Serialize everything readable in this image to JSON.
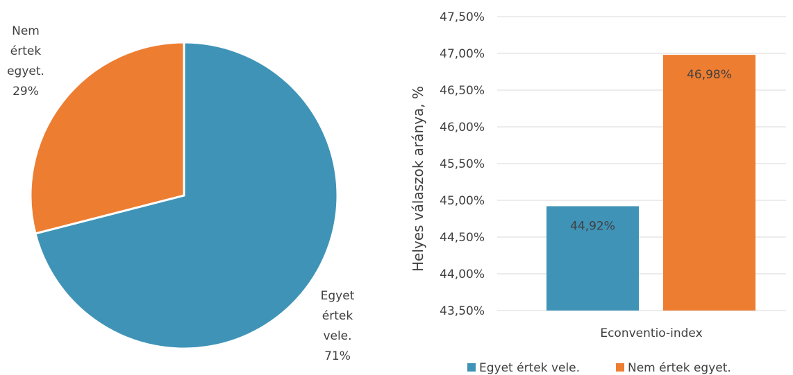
{
  "chart_data": [
    {
      "type": "pie",
      "slices": [
        {
          "label_lines": [
            "Egyet",
            "értek",
            "vele."
          ],
          "percent_label": "71%",
          "value": 71,
          "color": "#3f93b7"
        },
        {
          "label_lines": [
            "Nem",
            "értek",
            "egyet."
          ],
          "percent_label": "29%",
          "value": 29,
          "color": "#ed7d31"
        }
      ]
    },
    {
      "type": "bar",
      "categories": [
        "Econventio-index"
      ],
      "series": [
        {
          "name": "Egyet értek vele.",
          "values": [
            44.92
          ],
          "data_label": "44,92%",
          "color": "#3f93b7"
        },
        {
          "name": "Nem értek egyet.",
          "values": [
            46.98
          ],
          "data_label": "46,98%",
          "color": "#ed7d31"
        }
      ],
      "ylabel": "Helyes válaszok aránya, %",
      "ylim": [
        43.5,
        47.5
      ],
      "yticks": [
        "43,50%",
        "44,00%",
        "44,50%",
        "45,00%",
        "45,50%",
        "46,00%",
        "46,50%",
        "47,00%",
        "47,50%"
      ],
      "grid": true,
      "legend_position": "bottom"
    }
  ]
}
